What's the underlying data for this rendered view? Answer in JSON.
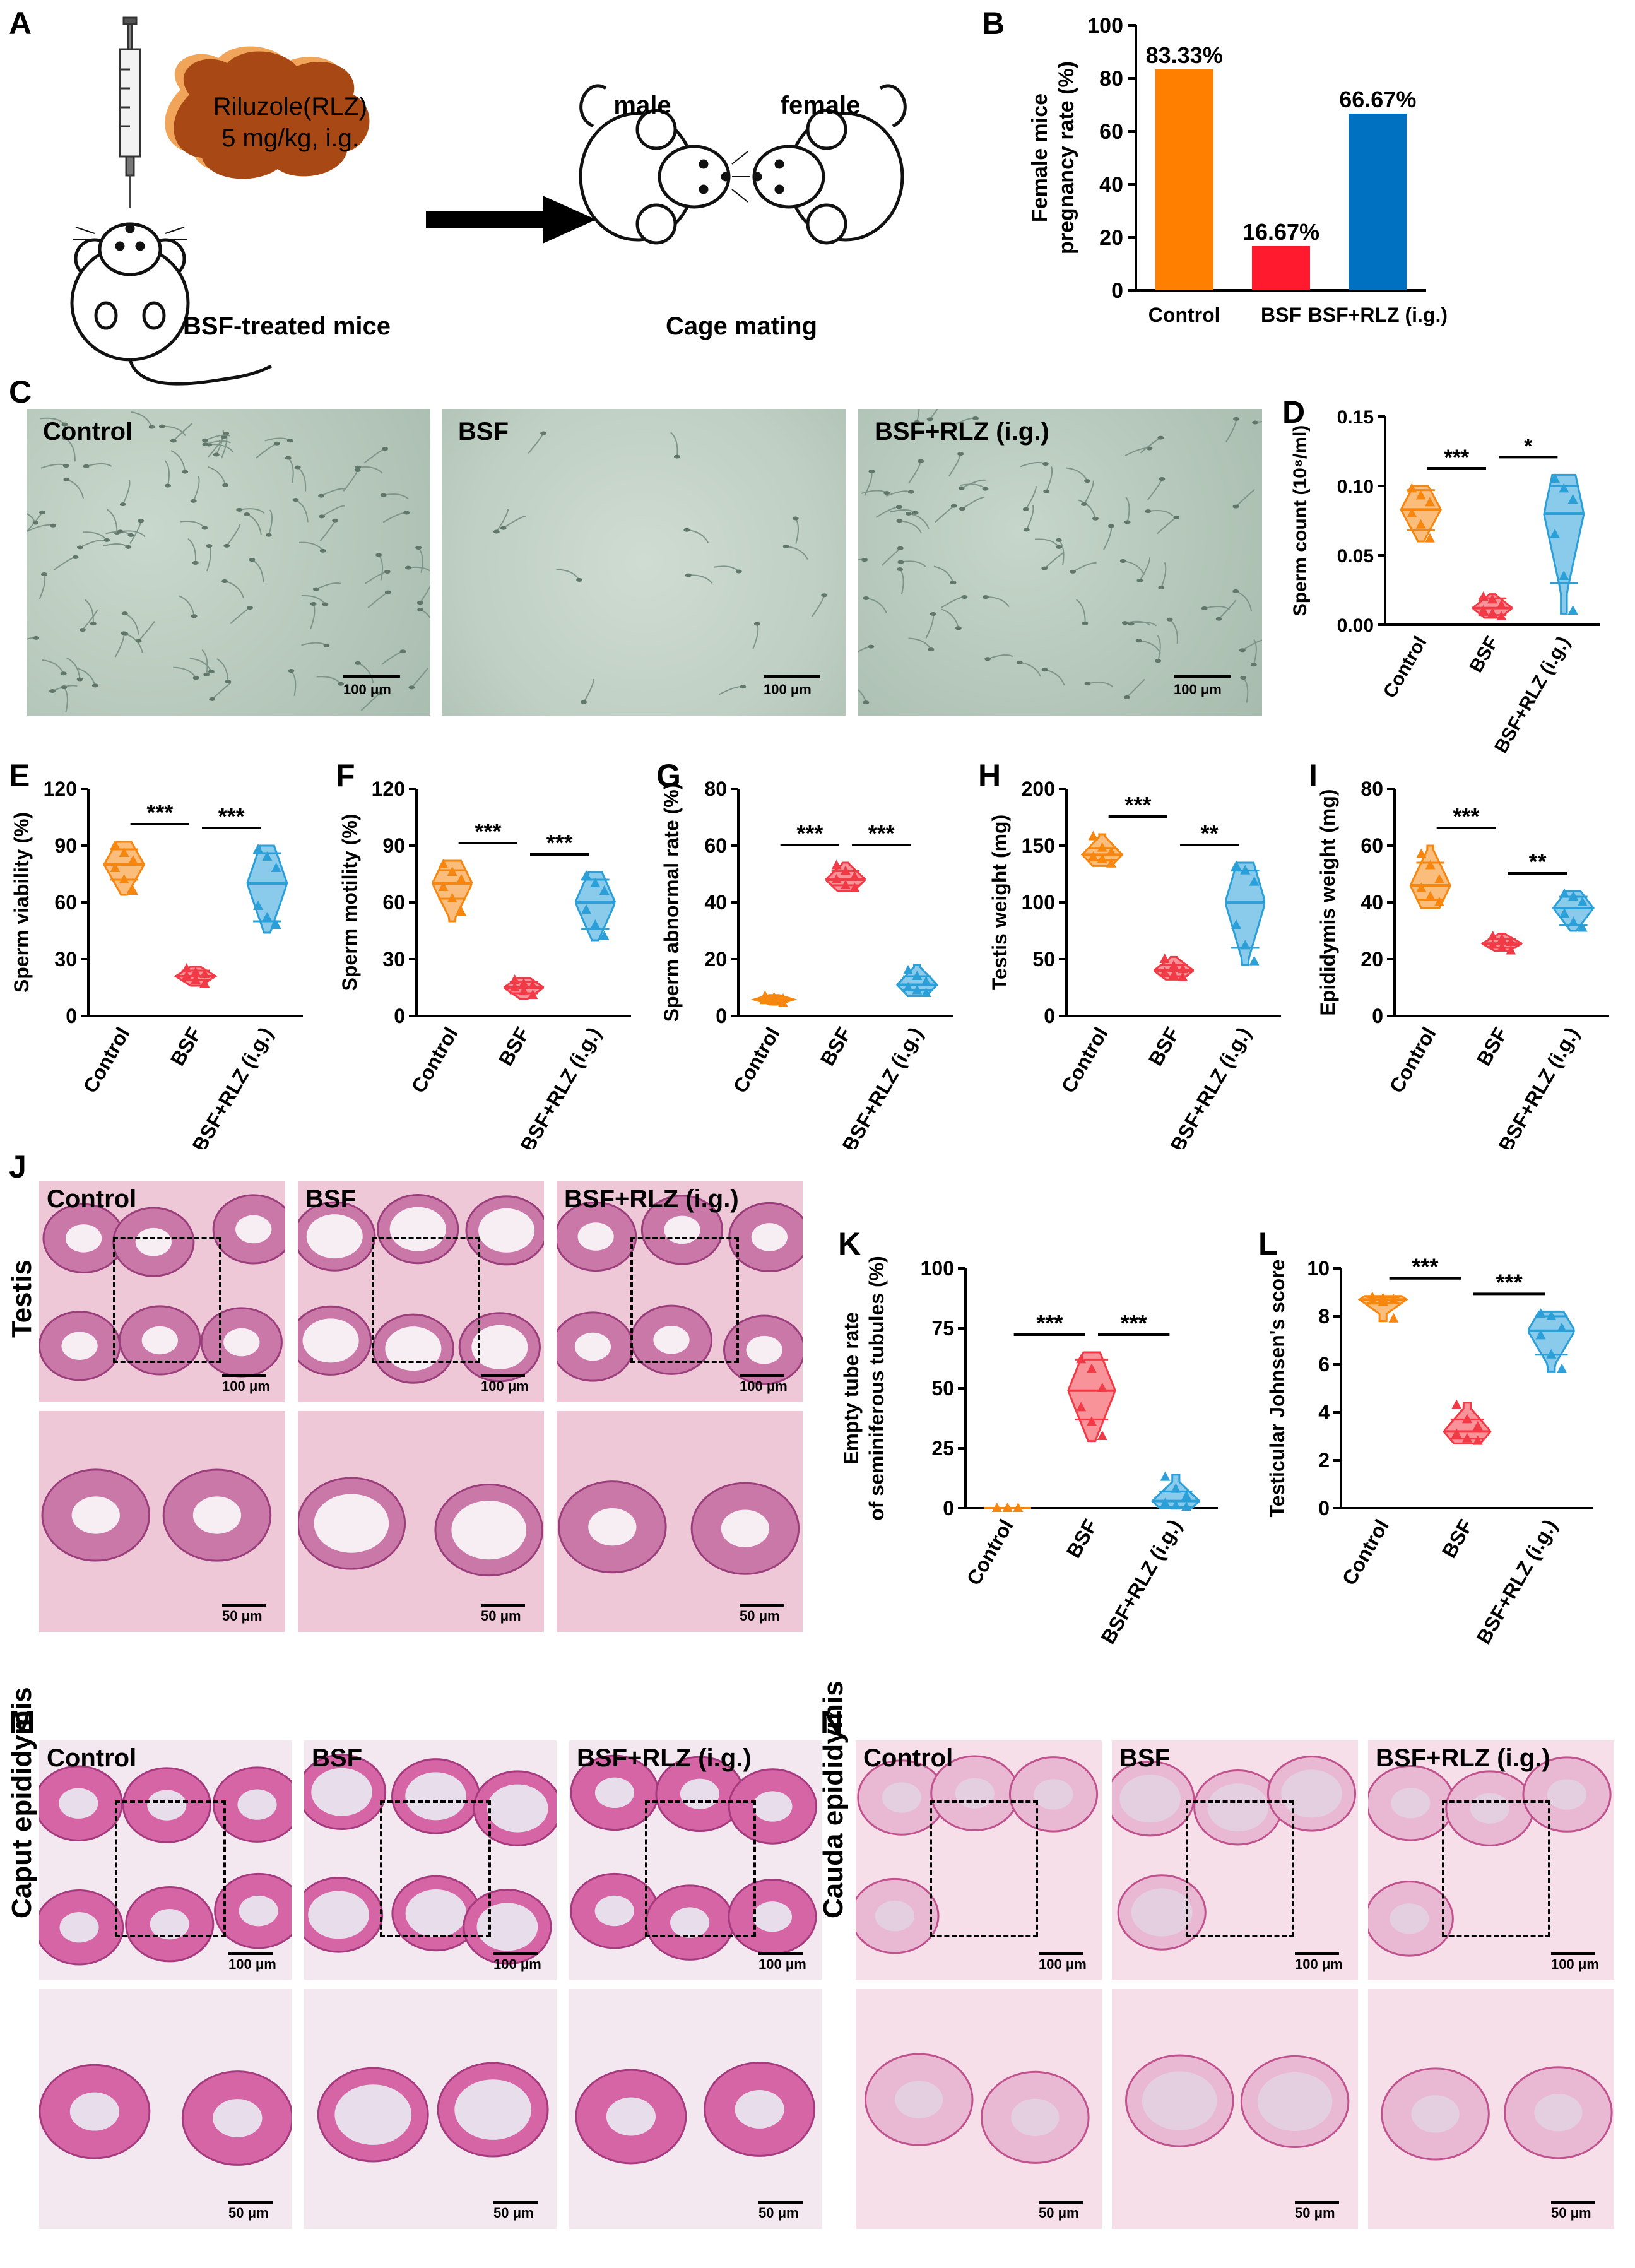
{
  "panel_letters": [
    "A",
    "B",
    "C",
    "D",
    "E",
    "F",
    "G",
    "H",
    "I",
    "J",
    "K",
    "L",
    "M",
    "N"
  ],
  "panel_a": {
    "drug_line1": "Riluzole(RLZ)",
    "drug_line2": "5 mg/kg, i.g.",
    "treated_label": "BSF-treated mice",
    "male_label": "male",
    "female_label": "female",
    "mating_label": "Cage mating"
  },
  "micrographs": {
    "group_labels": [
      "Control",
      "BSF",
      "BSF+RLZ (i.g.)"
    ],
    "scale_100": "100 μm",
    "scale_50": "50 μm",
    "testis_label": "Testis",
    "caput_label": "Caput epididymis",
    "cauda_label": "Cauda epididymis"
  },
  "colors": {
    "control": "#F7860F",
    "bsf": "#F23A47",
    "rlz": "#2A9FD8",
    "bar_control": "#FF8000",
    "bar_bsf": "#FF1A2E",
    "bar_rlz": "#0070C0",
    "brown": "#A84815",
    "brown_shadow": "#F0A55A"
  },
  "chart_data": [
    {
      "panel": "B",
      "type": "bar",
      "categories": [
        "Control",
        "BSF",
        "BSF+RLZ (i.g.)"
      ],
      "values": [
        83.33,
        16.67,
        66.67
      ],
      "data_labels": [
        "83.33%",
        "16.67%",
        "66.67%"
      ],
      "ylabel": "Female mice pregnancy rate (%)",
      "ylabel_lines": [
        "Female mice",
        "pregnancy rate (%)"
      ],
      "ylim": [
        0,
        100
      ],
      "yticks": [
        0,
        20,
        40,
        60,
        80,
        100
      ]
    },
    {
      "panel": "D",
      "type": "scatter",
      "categories": [
        "Control",
        "BSF",
        "BSF+RLZ (i.g.)"
      ],
      "ylabel": "Sperm count (10⁸/ml)",
      "ylabel_lines": [
        "Sperm count (10⁸/ml)"
      ],
      "ylim": [
        0,
        0.15
      ],
      "yticks": [
        0.0,
        0.05,
        0.1,
        0.15
      ],
      "ytick_labels": [
        "0.00",
        "0.05",
        "0.10",
        "0.15"
      ],
      "series": [
        {
          "name": "Control",
          "points": [
            0.098,
            0.093,
            0.088,
            0.08,
            0.072,
            0.062
          ],
          "median": 0.083,
          "q1": 0.068,
          "q3": 0.097,
          "min": 0.06,
          "max": 0.1
        },
        {
          "name": "BSF",
          "points": [
            0.02,
            0.018,
            0.014,
            0.01,
            0.008,
            0.006
          ],
          "median": 0.012,
          "q1": 0.007,
          "q3": 0.019,
          "min": 0.005,
          "max": 0.022
        },
        {
          "name": "BSF+RLZ (i.g.)",
          "points": [
            0.105,
            0.098,
            0.09,
            0.065,
            0.035,
            0.01
          ],
          "median": 0.08,
          "q1": 0.03,
          "q3": 0.1,
          "min": 0.008,
          "max": 0.108
        }
      ],
      "significance": [
        {
          "from": 0,
          "to": 1,
          "label": "***"
        },
        {
          "from": 1,
          "to": 2,
          "label": "*"
        }
      ]
    },
    {
      "panel": "E",
      "type": "scatter",
      "categories": [
        "Control",
        "BSF",
        "BSF+RLZ (i.g.)"
      ],
      "ylabel": "Sperm viability (%)",
      "ylabel_lines": [
        "Sperm viability (%)"
      ],
      "ylim": [
        0,
        120
      ],
      "yticks": [
        0,
        30,
        60,
        90,
        120
      ],
      "ytick_labels": [
        "0",
        "30",
        "60",
        "90",
        "120"
      ],
      "series": [
        {
          "name": "Control",
          "points": [
            90,
            86,
            82,
            78,
            72,
            66
          ],
          "median": 80,
          "q1": 72,
          "q3": 88,
          "min": 64,
          "max": 92
        },
        {
          "name": "BSF",
          "points": [
            25,
            23,
            22,
            21,
            19,
            17
          ],
          "median": 21,
          "q1": 19,
          "q3": 24,
          "min": 16,
          "max": 26
        },
        {
          "name": "BSF+RLZ (i.g.)",
          "points": [
            88,
            84,
            78,
            58,
            52,
            48
          ],
          "median": 70,
          "q1": 50,
          "q3": 86,
          "min": 44,
          "max": 90
        }
      ],
      "significance": [
        {
          "from": 0,
          "to": 1,
          "label": "***"
        },
        {
          "from": 1,
          "to": 2,
          "label": "***"
        }
      ]
    },
    {
      "panel": "F",
      "type": "scatter",
      "categories": [
        "Control",
        "BSF",
        "BSF+RLZ (i.g.)"
      ],
      "ylabel": "Sperm motility (%)",
      "ylabel_lines": [
        "Sperm motility (%)"
      ],
      "ylim": [
        0,
        120
      ],
      "yticks": [
        0,
        30,
        60,
        90,
        120
      ],
      "ytick_labels": [
        "0",
        "30",
        "60",
        "90",
        "120"
      ],
      "series": [
        {
          "name": "Control",
          "points": [
            80,
            76,
            72,
            68,
            62,
            55
          ],
          "median": 70,
          "q1": 62,
          "q3": 77,
          "min": 50,
          "max": 82
        },
        {
          "name": "BSF",
          "points": [
            19,
            17,
            16,
            15,
            13,
            11
          ],
          "median": 15,
          "q1": 12,
          "q3": 18,
          "min": 9,
          "max": 20
        },
        {
          "name": "BSF+RLZ (i.g.)",
          "points": [
            74,
            70,
            66,
            56,
            48,
            42
          ],
          "median": 60,
          "q1": 46,
          "q3": 72,
          "min": 40,
          "max": 76
        }
      ],
      "significance": [
        {
          "from": 0,
          "to": 1,
          "label": "***"
        },
        {
          "from": 1,
          "to": 2,
          "label": "***"
        }
      ]
    },
    {
      "panel": "G",
      "type": "scatter",
      "categories": [
        "Control",
        "BSF",
        "BSF+RLZ (i.g.)"
      ],
      "ylabel": "Sperm abnormal rate (%)",
      "ylabel_lines": [
        "Sperm abnormal rate (%)"
      ],
      "ylim": [
        0,
        80
      ],
      "yticks": [
        0,
        20,
        40,
        60,
        80
      ],
      "ytick_labels": [
        "0",
        "20",
        "40",
        "60",
        "80"
      ],
      "series": [
        {
          "name": "Control",
          "points": [
            7,
            6.5,
            6,
            5.5,
            5,
            4.5
          ],
          "median": 5.8,
          "q1": 5,
          "q3": 6.6,
          "min": 4.2,
          "max": 7.4
        },
        {
          "name": "BSF",
          "points": [
            53,
            51,
            49,
            48,
            46,
            45
          ],
          "median": 48,
          "q1": 46,
          "q3": 51,
          "min": 44,
          "max": 54
        },
        {
          "name": "BSF+RLZ (i.g.)",
          "points": [
            16,
            14,
            12,
            10,
            9,
            8
          ],
          "median": 11,
          "q1": 9,
          "q3": 14,
          "min": 7,
          "max": 18
        }
      ],
      "significance": [
        {
          "from": 0,
          "to": 1,
          "label": "***"
        },
        {
          "from": 1,
          "to": 2,
          "label": "***"
        }
      ]
    },
    {
      "panel": "H",
      "type": "scatter",
      "categories": [
        "Control",
        "BSF",
        "BSF+RLZ (i.g.)"
      ],
      "ylabel": "Testis weight (mg)",
      "ylabel_lines": [
        "Testis weight (mg)"
      ],
      "ylim": [
        0,
        200
      ],
      "yticks": [
        0,
        50,
        100,
        150,
        200
      ],
      "ytick_labels": [
        "0",
        "50",
        "100",
        "150",
        "200"
      ],
      "series": [
        {
          "name": "Control",
          "points": [
            158,
            148,
            144,
            140,
            138,
            134
          ],
          "median": 142,
          "q1": 137,
          "q3": 148,
          "min": 132,
          "max": 160
        },
        {
          "name": "BSF",
          "points": [
            50,
            44,
            41,
            38,
            36,
            34
          ],
          "median": 40,
          "q1": 35,
          "q3": 45,
          "min": 32,
          "max": 52
        },
        {
          "name": "BSF+RLZ (i.g.)",
          "points": [
            132,
            128,
            118,
            80,
            62,
            48
          ],
          "median": 100,
          "q1": 60,
          "q3": 128,
          "min": 45,
          "max": 135
        }
      ],
      "significance": [
        {
          "from": 0,
          "to": 1,
          "label": "***"
        },
        {
          "from": 1,
          "to": 2,
          "label": "**"
        }
      ]
    },
    {
      "panel": "I",
      "type": "scatter",
      "categories": [
        "Control",
        "BSF",
        "BSF+RLZ (i.g.)"
      ],
      "ylabel": "Epididymis weight (mg)",
      "ylabel_lines": [
        "Epididymis weight (mg)"
      ],
      "ylim": [
        0,
        80
      ],
      "yticks": [
        0,
        20,
        40,
        60,
        80
      ],
      "ytick_labels": [
        "0",
        "20",
        "40",
        "60",
        "80"
      ],
      "series": [
        {
          "name": "Control",
          "points": [
            57,
            53,
            48,
            45,
            42,
            40
          ],
          "median": 46,
          "q1": 41,
          "q3": 54,
          "min": 38,
          "max": 60
        },
        {
          "name": "BSF",
          "points": [
            28,
            27,
            26,
            25,
            24,
            23
          ],
          "median": 25.5,
          "q1": 24,
          "q3": 27,
          "min": 23,
          "max": 29
        },
        {
          "name": "BSF+RLZ (i.g.)",
          "points": [
            43,
            42,
            40,
            36,
            33,
            31
          ],
          "median": 38,
          "q1": 32,
          "q3": 42,
          "min": 30,
          "max": 44
        }
      ],
      "significance": [
        {
          "from": 0,
          "to": 1,
          "label": "***"
        },
        {
          "from": 1,
          "to": 2,
          "label": "**"
        }
      ]
    },
    {
      "panel": "K",
      "type": "scatter",
      "categories": [
        "Control",
        "BSF",
        "BSF+RLZ (i.g.)"
      ],
      "ylabel": "Empty tube rate of seminiferous tubules (%)",
      "ylabel_lines": [
        "Empty tube rate",
        "of seminiferous tubules (%)"
      ],
      "ylim": [
        0,
        100
      ],
      "yticks": [
        0,
        25,
        50,
        75,
        100
      ],
      "ytick_labels": [
        "0",
        "25",
        "50",
        "75",
        "100"
      ],
      "series": [
        {
          "name": "Control",
          "points": [
            0,
            0,
            0,
            0,
            0,
            0
          ],
          "median": 0,
          "q1": 0,
          "q3": 0,
          "min": 0,
          "max": 0
        },
        {
          "name": "BSF",
          "points": [
            62,
            58,
            50,
            42,
            36,
            30
          ],
          "median": 49,
          "q1": 37,
          "q3": 62,
          "min": 28,
          "max": 65
        },
        {
          "name": "BSF+RLZ (i.g.)",
          "points": [
            13,
            8,
            5,
            2,
            1,
            0.5
          ],
          "median": 3,
          "q1": 0.5,
          "q3": 7,
          "min": 0,
          "max": 14
        }
      ],
      "significance": [
        {
          "from": 0,
          "to": 1,
          "label": "***"
        },
        {
          "from": 1,
          "to": 2,
          "label": "***"
        }
      ]
    },
    {
      "panel": "L",
      "type": "scatter",
      "categories": [
        "Control",
        "BSF",
        "BSF+RLZ (i.g.)"
      ],
      "ylabel": "Testicular Johnsen's score",
      "ylabel_lines": [
        "Testicular Johnsen's score"
      ],
      "ylim": [
        0,
        10
      ],
      "yticks": [
        0,
        2,
        4,
        6,
        8,
        10
      ],
      "ytick_labels": [
        "0",
        "2",
        "4",
        "6",
        "8",
        "10"
      ],
      "series": [
        {
          "name": "Control",
          "points": [
            8.8,
            8.75,
            8.7,
            8.65,
            8.6,
            7.9
          ],
          "median": 8.7,
          "q1": 8.55,
          "q3": 8.8,
          "min": 7.8,
          "max": 8.85
        },
        {
          "name": "BSF",
          "points": [
            4.3,
            3.7,
            3.4,
            3.1,
            2.9,
            2.8
          ],
          "median": 3.2,
          "q1": 2.9,
          "q3": 3.7,
          "min": 2.7,
          "max": 4.4
        },
        {
          "name": "BSF+RLZ (i.g.)",
          "points": [
            8.1,
            8.0,
            7.5,
            7.2,
            6.4,
            5.8
          ],
          "median": 7.4,
          "q1": 6.4,
          "q3": 8.0,
          "min": 5.7,
          "max": 8.2
        }
      ],
      "significance": [
        {
          "from": 0,
          "to": 1,
          "label": "***"
        },
        {
          "from": 1,
          "to": 2,
          "label": "***"
        }
      ]
    }
  ]
}
